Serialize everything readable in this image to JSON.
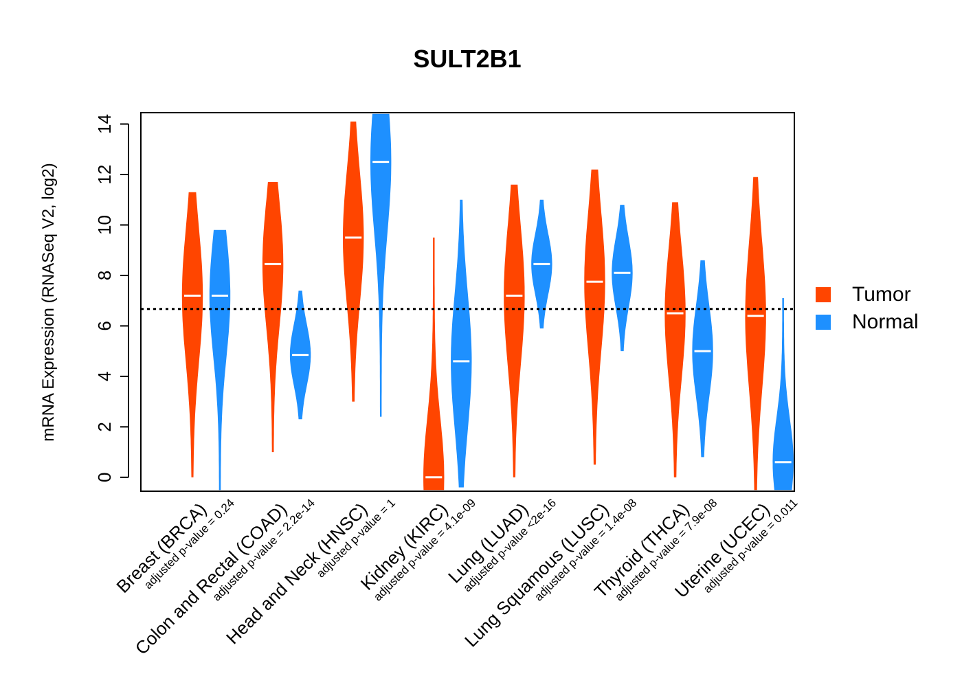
{
  "chart_data": {
    "type": "violin",
    "title": "SULT2B1",
    "ylabel": "mRNA Expression (RNASeq V2, log2)",
    "xlabel": "",
    "ylim": [
      -0.55,
      14.45
    ],
    "yticks": [
      0,
      2,
      4,
      6,
      8,
      10,
      12,
      14
    ],
    "ytick_labels": [
      "0",
      "2",
      "4",
      "6",
      "8",
      "10",
      "12",
      "14"
    ],
    "reference_line": 6.67,
    "legend": [
      {
        "name": "Tumor",
        "color": "#FF4500"
      },
      {
        "name": "Normal",
        "color": "#1E90FF"
      }
    ],
    "groups": [
      {
        "label": "Breast (BRCA)",
        "pvalue_label": "adjusted p-value = 0.24",
        "tumor": {
          "min": 0.0,
          "max": 11.3,
          "median": 7.2,
          "spread": 9.5
        },
        "normal": {
          "min": -0.5,
          "max": 9.8,
          "median": 7.2,
          "spread": 8.0
        }
      },
      {
        "label": "Colon and Rectal (COAD)",
        "pvalue_label": "adjusted p-value = 2.2e-14",
        "tumor": {
          "min": 1.0,
          "max": 11.7,
          "median": 8.45,
          "spread": 10.0
        },
        "normal": {
          "min": 2.3,
          "max": 7.4,
          "median": 4.85,
          "spread": 6.0
        }
      },
      {
        "label": "Head and Neck (HNSC)",
        "pvalue_label": "adjusted p-value = 1",
        "tumor": {
          "min": 3.0,
          "max": 14.1,
          "median": 9.5,
          "spread": 12.5
        },
        "normal": {
          "min": 2.4,
          "max": 14.4,
          "median": 12.5,
          "spread": 13.0
        }
      },
      {
        "label": "Kidney (KIRC)",
        "pvalue_label": "adjusted p-value = 4.1e-09",
        "tumor": {
          "min": -0.5,
          "max": 9.5,
          "median": 0.0,
          "spread": 4.5
        },
        "normal": {
          "min": -0.4,
          "max": 11.0,
          "median": 4.6,
          "spread": 9.5
        }
      },
      {
        "label": "Lung (LUAD)",
        "pvalue_label": "adjusted p-value <2e-16",
        "tumor": {
          "min": 0.0,
          "max": 11.6,
          "median": 7.2,
          "spread": 9.5
        },
        "normal": {
          "min": 5.9,
          "max": 11.0,
          "median": 8.45,
          "spread": 9.5
        }
      },
      {
        "label": "Lung Squamous (LUSC)",
        "pvalue_label": "adjusted p-value = 1.4e-08",
        "tumor": {
          "min": 0.5,
          "max": 12.2,
          "median": 7.75,
          "spread": 10.0
        },
        "normal": {
          "min": 5.0,
          "max": 10.8,
          "median": 8.1,
          "spread": 9.0
        }
      },
      {
        "label": "Thyroid (THCA)",
        "pvalue_label": "adjusted p-value = 7.9e-08",
        "tumor": {
          "min": 0.0,
          "max": 10.9,
          "median": 6.5,
          "spread": 9.0
        },
        "normal": {
          "min": 0.8,
          "max": 8.6,
          "median": 5.0,
          "spread": 6.5
        }
      },
      {
        "label": "Uterine (UCEC)",
        "pvalue_label": "adjusted p-value = 0.011",
        "tumor": {
          "min": -0.5,
          "max": 11.9,
          "median": 6.4,
          "spread": 11.0
        },
        "normal": {
          "min": -0.5,
          "max": 7.1,
          "median": 0.6,
          "spread": 5.5
        }
      }
    ]
  }
}
